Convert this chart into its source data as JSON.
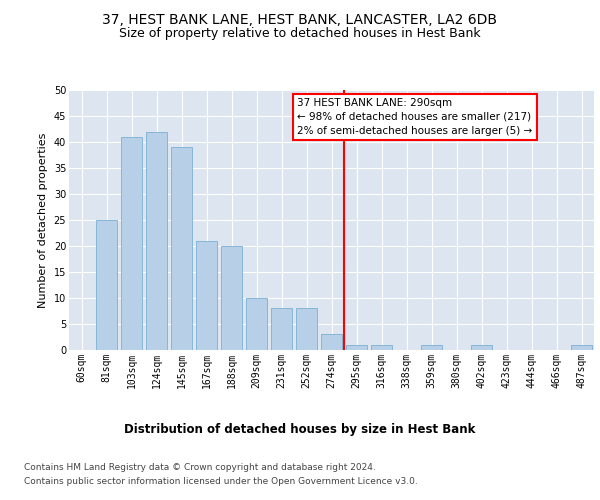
{
  "title": "37, HEST BANK LANE, HEST BANK, LANCASTER, LA2 6DB",
  "subtitle": "Size of property relative to detached houses in Hest Bank",
  "xlabel": "Distribution of detached houses by size in Hest Bank",
  "ylabel": "Number of detached properties",
  "categories": [
    "60sqm",
    "81sqm",
    "103sqm",
    "124sqm",
    "145sqm",
    "167sqm",
    "188sqm",
    "209sqm",
    "231sqm",
    "252sqm",
    "274sqm",
    "295sqm",
    "316sqm",
    "338sqm",
    "359sqm",
    "380sqm",
    "402sqm",
    "423sqm",
    "444sqm",
    "466sqm",
    "487sqm"
  ],
  "values": [
    0,
    25,
    41,
    42,
    39,
    21,
    20,
    10,
    8,
    8,
    3,
    1,
    1,
    0,
    1,
    0,
    1,
    0,
    0,
    0,
    1
  ],
  "bar_color": "#b8cfe8",
  "bar_edge_color": "#7aafd4",
  "red_line_index": 11,
  "red_line_label": "37 HEST BANK LANE: 290sqm",
  "annotation_line1": "← 98% of detached houses are smaller (217)",
  "annotation_line2": "2% of semi-detached houses are larger (5) →",
  "ylim": [
    0,
    50
  ],
  "yticks": [
    0,
    5,
    10,
    15,
    20,
    25,
    30,
    35,
    40,
    45,
    50
  ],
  "plot_bg_color": "#dde6f0",
  "footer_line1": "Contains HM Land Registry data © Crown copyright and database right 2024.",
  "footer_line2": "Contains public sector information licensed under the Open Government Licence v3.0.",
  "title_fontsize": 10,
  "subtitle_fontsize": 9,
  "xlabel_fontsize": 8.5,
  "ylabel_fontsize": 8,
  "tick_fontsize": 7,
  "footer_fontsize": 6.5
}
